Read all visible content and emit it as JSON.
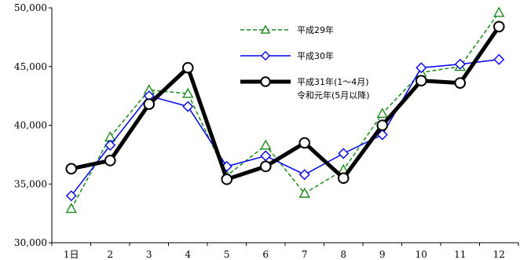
{
  "chart_data": {
    "type": "line",
    "categories": [
      "1日",
      "2",
      "3",
      "4",
      "5",
      "6",
      "7",
      "8",
      "9",
      "10",
      "11",
      "12"
    ],
    "ylim": [
      30000,
      50000
    ],
    "yticks": [
      30000,
      35000,
      40000,
      45000,
      50000
    ],
    "ytick_labels": [
      "30,000",
      "35,000",
      "40,000",
      "45,000",
      "50,000"
    ],
    "grid": false,
    "legend_position": "top-center",
    "series": [
      {
        "name": "平成29年",
        "marker": "triangle",
        "color": "#1a8a1a",
        "dash": true,
        "width": 1.5,
        "values": [
          32900,
          39000,
          43000,
          42700,
          35700,
          38300,
          34200,
          36200,
          41000,
          44500,
          45000,
          49600
        ]
      },
      {
        "name": "平成30年",
        "marker": "diamond",
        "color": "#0000ee",
        "dash": false,
        "width": 1.5,
        "values": [
          34000,
          38300,
          42500,
          41600,
          36500,
          37400,
          35800,
          37600,
          39200,
          44900,
          45200,
          45600
        ]
      },
      {
        "name": "平成31年(1～4月)",
        "name_line2": "令和元年(5月以降)",
        "marker": "circle",
        "color": "#000000",
        "dash": false,
        "width": 5,
        "values": [
          36300,
          37000,
          41800,
          44900,
          35400,
          36500,
          38500,
          35500,
          40000,
          43800,
          43600,
          48400
        ]
      }
    ]
  }
}
